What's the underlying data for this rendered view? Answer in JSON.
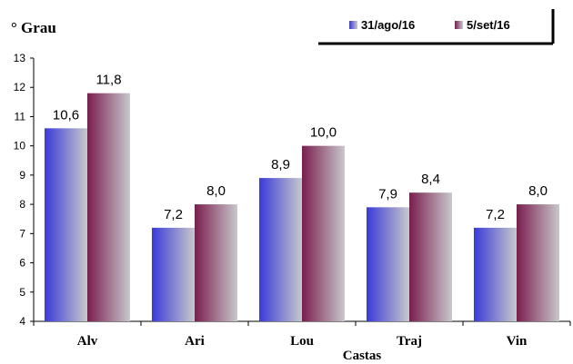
{
  "chart_data": {
    "type": "bar",
    "ylabel": "° Grau",
    "xlabel": "Castas",
    "ylim": [
      4,
      13
    ],
    "yticks": [
      4,
      5,
      6,
      7,
      8,
      9,
      10,
      11,
      12,
      13
    ],
    "categories": [
      "Alv",
      "Ari",
      "Lou",
      "Traj",
      "Vin"
    ],
    "series": [
      {
        "name": "31/ago/16",
        "values": [
          10.6,
          7.2,
          8.9,
          7.9,
          7.2
        ],
        "labels": [
          "10,6",
          "7,2",
          "8,9",
          "7,9",
          "7,2"
        ]
      },
      {
        "name": "5/set/16",
        "values": [
          11.8,
          8.0,
          10.0,
          8.4,
          8.0
        ],
        "labels": [
          "11,8",
          "8,0",
          "10,0",
          "8,4",
          "8,0"
        ]
      }
    ],
    "grid": false,
    "legend": "top-right",
    "colors": {
      "series1_start": "#3a3ad8",
      "series1_end": "#c8c8cc",
      "series2_start": "#7a1e4e",
      "series2_end": "#c8c8cc"
    }
  }
}
